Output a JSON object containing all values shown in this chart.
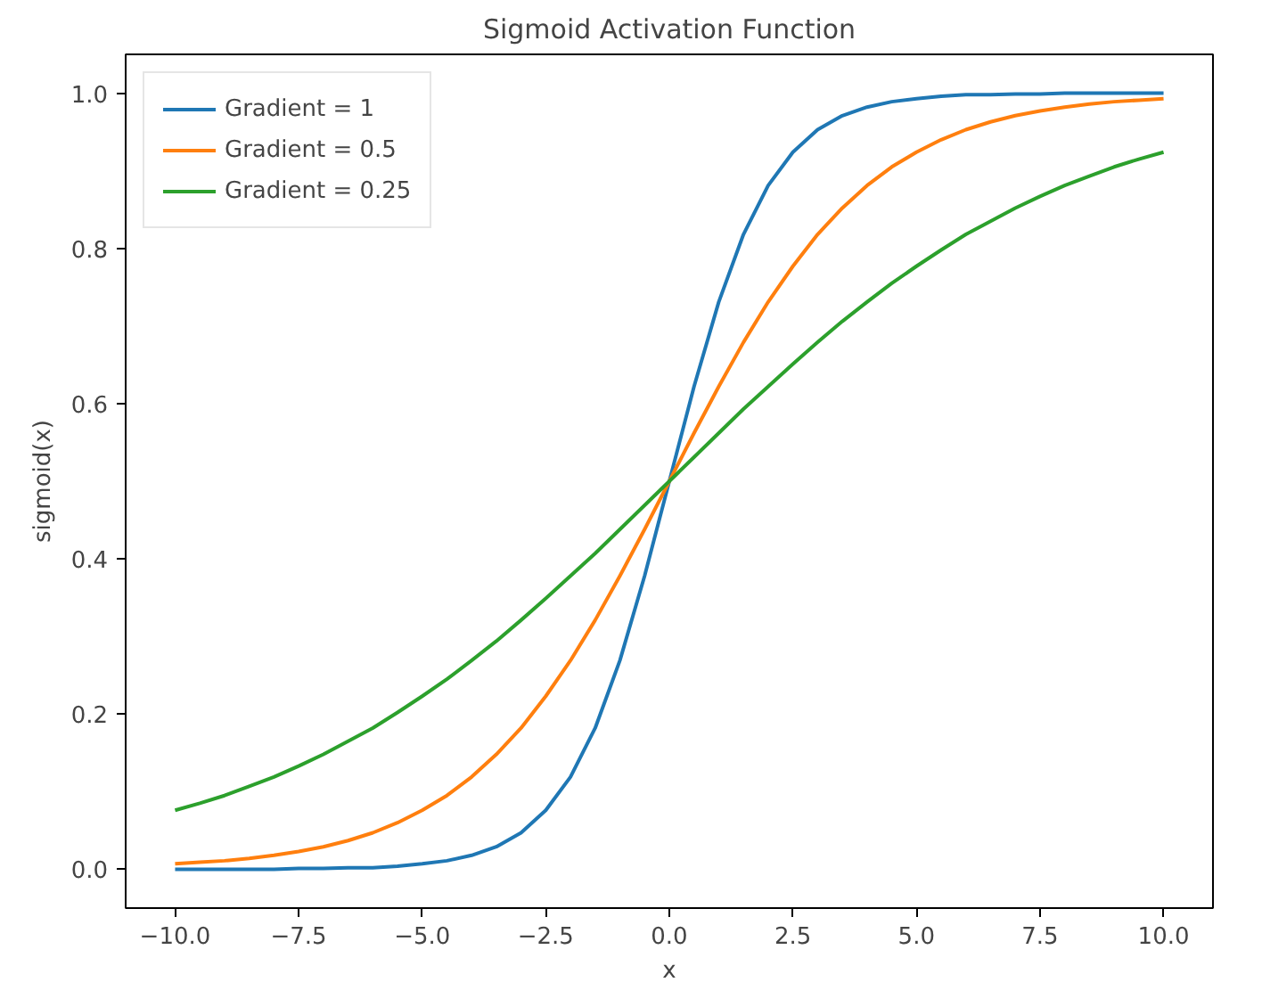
{
  "chart_data": {
    "type": "line",
    "title": "Sigmoid Activation Function",
    "xlabel": "x",
    "ylabel": "sigmoid(x)",
    "x": [
      -10,
      -9.5,
      -9,
      -8.5,
      -8,
      -7.5,
      -7,
      -6.5,
      -6,
      -5.5,
      -5,
      -4.5,
      -4,
      -3.5,
      -3,
      -2.5,
      -2,
      -1.5,
      -1,
      -0.5,
      0,
      0.5,
      1,
      1.5,
      2,
      2.5,
      3,
      3.5,
      4,
      4.5,
      5,
      5.5,
      6,
      6.5,
      7,
      7.5,
      8,
      8.5,
      9,
      9.5,
      10
    ],
    "series": [
      {
        "name": "Gradient = 1",
        "color": "#1f77b4",
        "values": [
          0.0,
          0.0,
          0.0,
          0.0,
          0.0,
          0.001,
          0.001,
          0.002,
          0.002,
          0.004,
          0.007,
          0.011,
          0.018,
          0.029,
          0.047,
          0.076,
          0.119,
          0.182,
          0.269,
          0.378,
          0.5,
          0.622,
          0.731,
          0.818,
          0.881,
          0.924,
          0.953,
          0.971,
          0.982,
          0.989,
          0.993,
          0.996,
          0.998,
          0.998,
          0.999,
          0.999,
          1.0,
          1.0,
          1.0,
          1.0,
          1.0
        ]
      },
      {
        "name": "Gradient = 0.5",
        "color": "#ff7f0e",
        "values": [
          0.007,
          0.009,
          0.011,
          0.014,
          0.018,
          0.023,
          0.029,
          0.037,
          0.047,
          0.06,
          0.076,
          0.095,
          0.119,
          0.148,
          0.182,
          0.223,
          0.269,
          0.321,
          0.378,
          0.438,
          0.5,
          0.562,
          0.622,
          0.679,
          0.731,
          0.777,
          0.818,
          0.852,
          0.881,
          0.905,
          0.924,
          0.94,
          0.953,
          0.963,
          0.971,
          0.977,
          0.982,
          0.986,
          0.989,
          0.991,
          0.993
        ]
      },
      {
        "name": "Gradient = 0.25",
        "color": "#2ca02c",
        "values": [
          0.076,
          0.085,
          0.095,
          0.107,
          0.119,
          0.133,
          0.148,
          0.165,
          0.182,
          0.202,
          0.223,
          0.245,
          0.269,
          0.294,
          0.321,
          0.349,
          0.378,
          0.407,
          0.438,
          0.469,
          0.5,
          0.531,
          0.562,
          0.593,
          0.622,
          0.651,
          0.679,
          0.706,
          0.731,
          0.755,
          0.777,
          0.798,
          0.818,
          0.835,
          0.852,
          0.867,
          0.881,
          0.893,
          0.905,
          0.915,
          0.924
        ]
      }
    ],
    "xlim": [
      -11,
      11
    ],
    "ylim": [
      -0.05,
      1.05
    ],
    "xticks": [
      {
        "value": -10,
        "label": "−10.0"
      },
      {
        "value": -7.5,
        "label": "−7.5"
      },
      {
        "value": -5,
        "label": "−5.0"
      },
      {
        "value": -2.5,
        "label": "−2.5"
      },
      {
        "value": 0,
        "label": "0.0"
      },
      {
        "value": 2.5,
        "label": "2.5"
      },
      {
        "value": 5,
        "label": "5.0"
      },
      {
        "value": 7.5,
        "label": "7.5"
      },
      {
        "value": 10,
        "label": "10.0"
      }
    ],
    "yticks": [
      {
        "value": 0,
        "label": "0.0"
      },
      {
        "value": 0.2,
        "label": "0.2"
      },
      {
        "value": 0.4,
        "label": "0.4"
      },
      {
        "value": 0.6,
        "label": "0.6"
      },
      {
        "value": 0.8,
        "label": "0.8"
      },
      {
        "value": 1,
        "label": "1.0"
      }
    ],
    "legend": "top left",
    "grid": false,
    "line_style": "solid"
  }
}
